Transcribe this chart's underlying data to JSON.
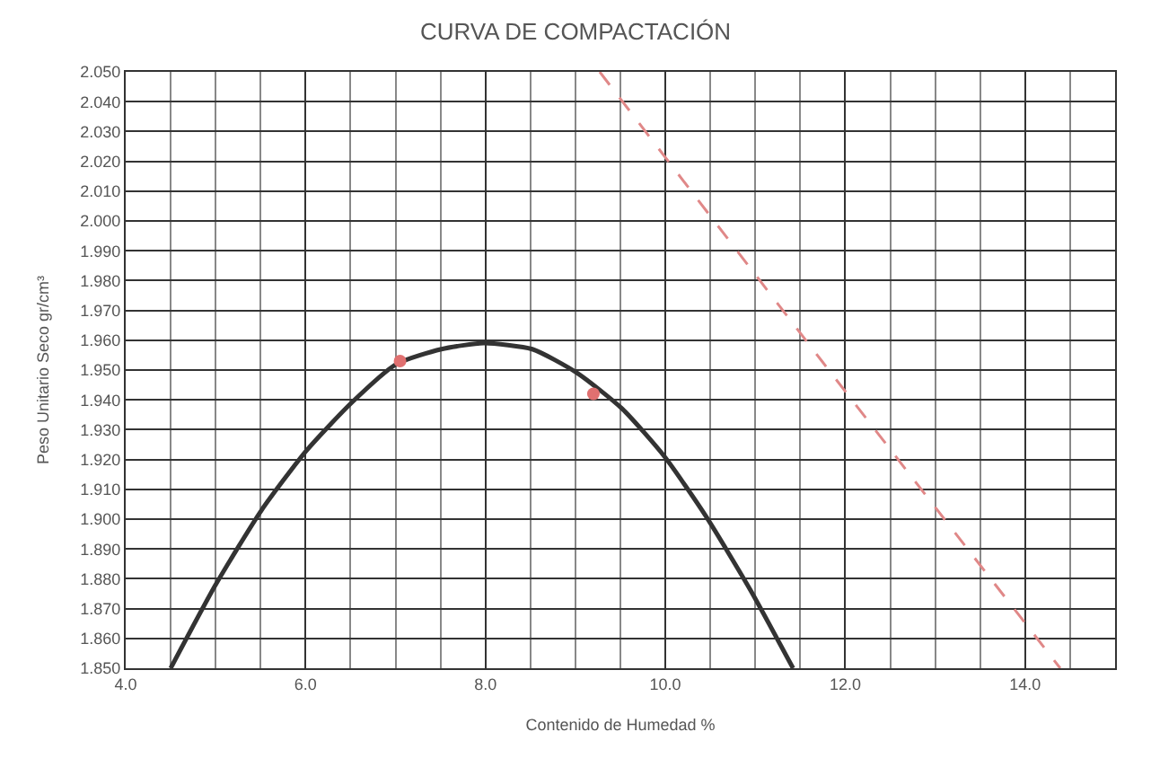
{
  "chart_data": {
    "type": "line",
    "title": "CURVA DE COMPACTACIÓN",
    "xlabel": "Contenido de Humedad %",
    "ylabel": "Peso Unitario Seco gr/cm³",
    "series": [
      {
        "color": "#333333",
        "marker": "none",
        "line_style": "solid",
        "x": [
          4.5,
          5.0,
          5.51,
          6.01,
          6.51,
          7.01,
          7.51,
          7.98,
          8.52,
          9.02,
          9.52,
          9.99,
          10.45,
          10.95,
          11.42
        ],
        "values": [
          1.85,
          1.878,
          1.903,
          1.923,
          1.939,
          1.952,
          1.957,
          1.959,
          1.957,
          1.949,
          1.937,
          1.921,
          1.901,
          1.876,
          1.85
        ]
      },
      {
        "type": "scatter",
        "color": "#e07070",
        "marker": "circle",
        "x": [
          7.05,
          9.2
        ],
        "values": [
          1.953,
          1.942
        ]
      },
      {
        "type": "line",
        "color": "#e08888",
        "marker": "none",
        "line_style": "dashed",
        "x": [
          9.27,
          11.74,
          14.39
        ],
        "values": [
          2.05,
          1.953,
          1.85
        ]
      }
    ],
    "xlim": [
      4.0,
      15.0
    ],
    "xticks": [
      {
        "value": 4,
        "label": "4.0"
      },
      {
        "value": 6,
        "label": "6.0"
      },
      {
        "value": 8,
        "label": "8.0"
      },
      {
        "value": 10,
        "label": "10.0"
      },
      {
        "value": 12,
        "label": "12.0"
      },
      {
        "value": 14,
        "label": "14.0"
      }
    ],
    "ylim": [
      1.85,
      2.05
    ],
    "yticks": [
      {
        "value": 1.85,
        "label": "1.850"
      },
      {
        "value": 1.86,
        "label": "1.860"
      },
      {
        "value": 1.87,
        "label": "1.870"
      },
      {
        "value": 1.88,
        "label": "1.880"
      },
      {
        "value": 1.89,
        "label": "1.890"
      },
      {
        "value": 1.9,
        "label": "1.900"
      },
      {
        "value": 1.91,
        "label": "1.910"
      },
      {
        "value": 1.92,
        "label": "1.920"
      },
      {
        "value": 1.93,
        "label": "1.930"
      },
      {
        "value": 1.94,
        "label": "1.940"
      },
      {
        "value": 1.95,
        "label": "1.950"
      },
      {
        "value": 1.96,
        "label": "1.960"
      },
      {
        "value": 1.97,
        "label": "1.970"
      },
      {
        "value": 1.98,
        "label": "1.980"
      },
      {
        "value": 1.99,
        "label": "1.990"
      },
      {
        "value": 2.0,
        "label": "2.000"
      },
      {
        "value": 2.01,
        "label": "2.010"
      },
      {
        "value": 2.02,
        "label": "2.020"
      },
      {
        "value": 2.03,
        "label": "2.030"
      },
      {
        "value": 2.04,
        "label": "2.040"
      },
      {
        "value": 2.05,
        "label": "2.050"
      }
    ],
    "grid": true
  }
}
